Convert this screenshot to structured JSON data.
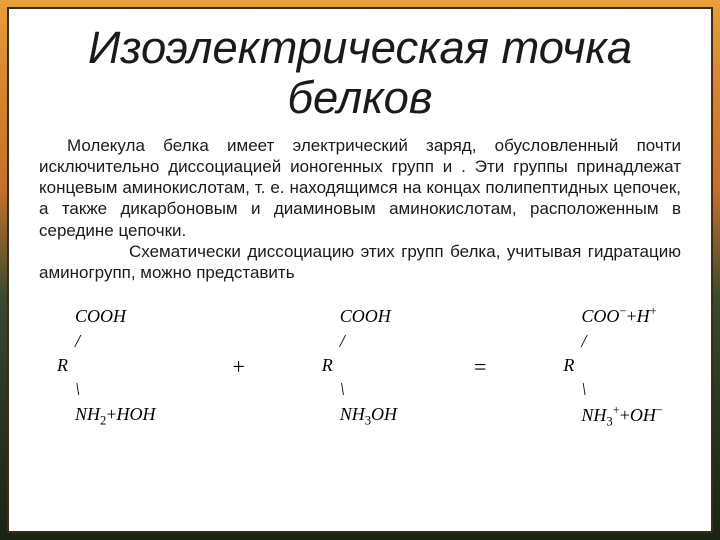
{
  "title": {
    "text": "Изоэлектрическая  точка белков",
    "fontsize_pt": 34,
    "color": "#1a1a1a",
    "italic": true
  },
  "paragraph": {
    "sentence1": "Молекула белка имеет электрический заряд, обусловленный почти исключительно диссоциацией ионогенных групп   и . Эти группы принадлежат концевым аминокислотам, т. е. находящимся на концах полипептидных цепочек, а также дикарбоновым  и диаминовым аминокислотам, расположенным в середине цепочки.",
    "sentence2": "Схематически диссоциацию этих групп белка, учитывая гидратацию аминогрупп, можно представить",
    "fontsize_pt": 17,
    "color": "#1a1a1a"
  },
  "equation": {
    "font": "Times New Roman italic",
    "mol_fontsize_pt": 18,
    "op_fontsize_pt": 22,
    "color": "#000000",
    "molecules": [
      {
        "lines": [
          {
            "html": "    COOH"
          },
          {
            "html": "    /"
          },
          {
            "html": "R"
          },
          {
            "html": "    \\"
          },
          {
            "html": "    NH<sub>2</sub><span class='upright'>+</span>HOH"
          }
        ]
      },
      {
        "lines": [
          {
            "html": "    COOH"
          },
          {
            "html": "    /"
          },
          {
            "html": "R"
          },
          {
            "html": "    \\"
          },
          {
            "html": "    NH<sub>3</sub>OH"
          }
        ]
      },
      {
        "lines": [
          {
            "html": "    COO<sup>−</sup><span class='upright'>+</span>H<sup>+</sup>"
          },
          {
            "html": "    /"
          },
          {
            "html": "R"
          },
          {
            "html": "    \\"
          },
          {
            "html": "    NH<sub>3</sub><sup>+</sup><span class='upright'>+</span>OH<sup>−</sup>"
          }
        ]
      }
    ],
    "operators": [
      "+",
      "="
    ]
  },
  "frame": {
    "outer_gradient": [
      "#e8a03a",
      "#d88530",
      "#c5702a",
      "#3a4a2e",
      "#2a3620",
      "#1a2414"
    ],
    "inner_bg": "#ffffff",
    "inner_border": "#3a2a18"
  }
}
